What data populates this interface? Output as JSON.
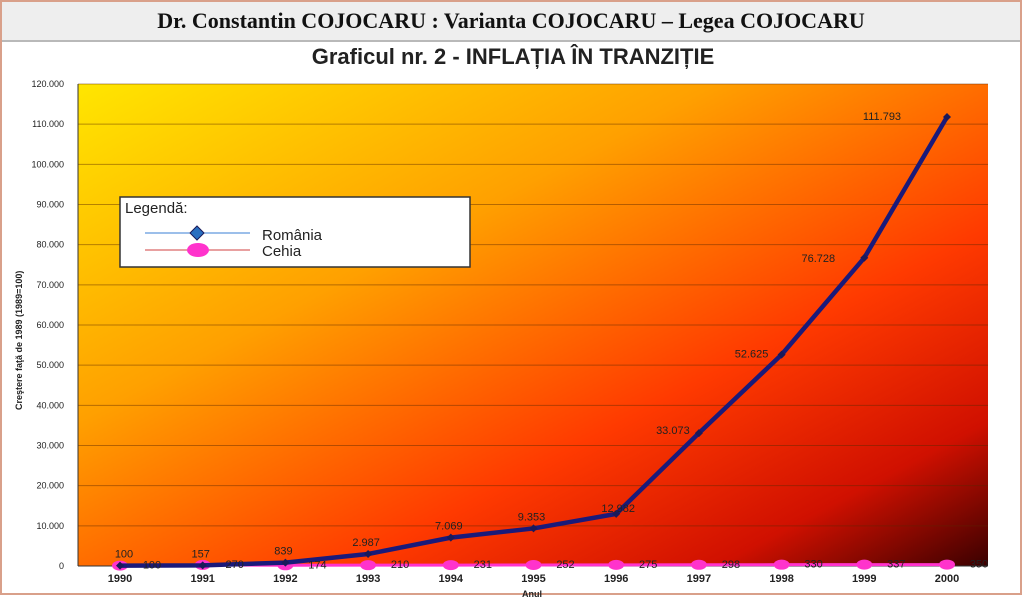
{
  "header": {
    "title": "Dr. Constantin COJOCARU : Varianta COJOCARU – Legea COJOCARU"
  },
  "chart_data": {
    "type": "line",
    "title": "Graficul nr. 2 - INFLAȚIA ÎN TRANZIȚIE",
    "xlabel": "Anul",
    "ylabel": "Creştere faţă de 1989 (1989=100)",
    "categories": [
      "1990",
      "1991",
      "1992",
      "1993",
      "1994",
      "1995",
      "1996",
      "1997",
      "1998",
      "1999",
      "2000"
    ],
    "ylim": [
      0,
      120000
    ],
    "yticks": [
      "0",
      "10.000",
      "20.000",
      "30.000",
      "40.000",
      "50.000",
      "60.000",
      "70.000",
      "80.000",
      "90.000",
      "100.000",
      "110.000",
      "120.000"
    ],
    "grid": true,
    "legend": {
      "title": "Legendă:",
      "position": "upper-left"
    },
    "series": [
      {
        "name": "România",
        "color": "#1a1a7a",
        "values": [
          100,
          157,
          839,
          2987,
          7069,
          9353,
          12982,
          33073,
          52625,
          76728,
          111793
        ],
        "labels": [
          "100",
          "157",
          "839",
          "2.987",
          "7.069",
          "9.353",
          "12.982",
          "33.073",
          "52.625",
          "76.728",
          "111.793"
        ]
      },
      {
        "name": "Cehia",
        "color": "#ff33cc",
        "values": [
          100,
          270,
          174,
          210,
          231,
          252,
          275,
          298,
          330,
          337,
          350
        ],
        "labels": [
          "100",
          "270",
          "174",
          "210",
          "231",
          "252",
          "275",
          "298",
          "330",
          "337",
          "350"
        ]
      }
    ]
  }
}
